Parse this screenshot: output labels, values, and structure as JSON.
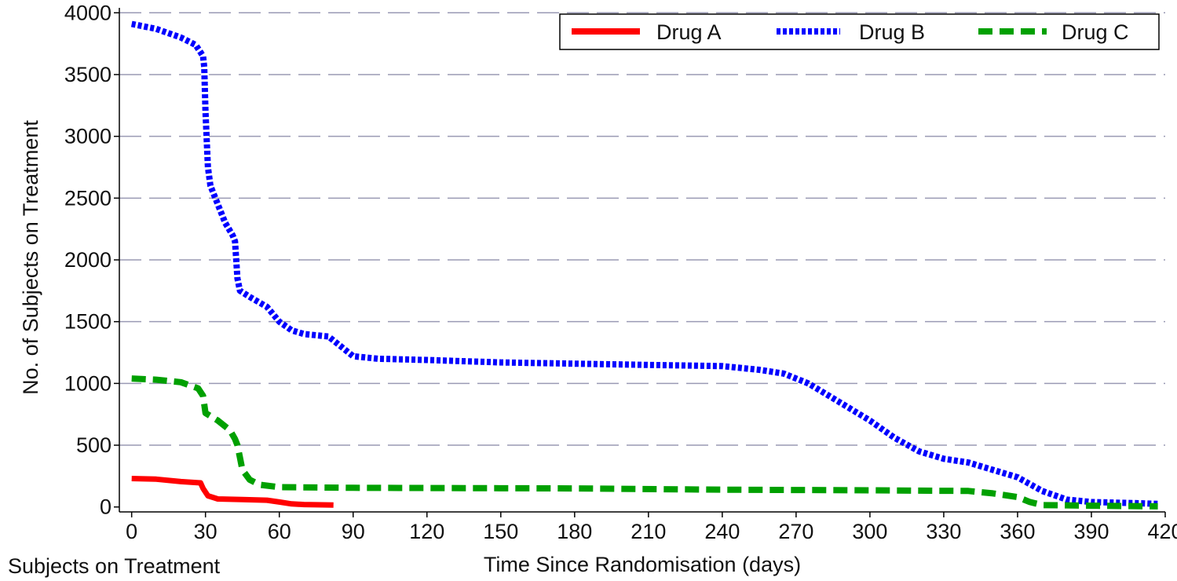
{
  "chart_data": {
    "type": "line",
    "xlabel": "Time Since Randomisation (days)",
    "ylabel": "No. of Subjects on Treatment",
    "xlim": [
      -5,
      420
    ],
    "ylim": [
      -40,
      4040
    ],
    "x_ticks": [
      0,
      30,
      60,
      90,
      120,
      150,
      180,
      210,
      240,
      270,
      300,
      330,
      360,
      390,
      420
    ],
    "y_ticks": [
      0,
      500,
      1000,
      1500,
      2000,
      2500,
      3000,
      3500,
      4000
    ],
    "grid": "horizontal dashed",
    "legend_position": "top-right",
    "series": [
      {
        "name": "Drug A",
        "color": "#ff0000",
        "style": "solid",
        "points": [
          [
            0,
            230
          ],
          [
            10,
            225
          ],
          [
            20,
            205
          ],
          [
            28,
            195
          ],
          [
            29,
            150
          ],
          [
            31,
            90
          ],
          [
            35,
            65
          ],
          [
            45,
            60
          ],
          [
            55,
            55
          ],
          [
            60,
            40
          ],
          [
            65,
            25
          ],
          [
            70,
            20
          ],
          [
            75,
            18
          ],
          [
            82,
            15
          ]
        ]
      },
      {
        "name": "Drug B",
        "color": "#0000ff",
        "style": "dotted",
        "points": [
          [
            0,
            3910
          ],
          [
            10,
            3870
          ],
          [
            20,
            3800
          ],
          [
            26,
            3740
          ],
          [
            29,
            3650
          ],
          [
            29.5,
            3560
          ],
          [
            30,
            3200
          ],
          [
            31,
            2750
          ],
          [
            32,
            2600
          ],
          [
            35,
            2450
          ],
          [
            38,
            2300
          ],
          [
            41,
            2200
          ],
          [
            42,
            2150
          ],
          [
            43,
            1850
          ],
          [
            44,
            1750
          ],
          [
            48,
            1700
          ],
          [
            55,
            1620
          ],
          [
            60,
            1500
          ],
          [
            65,
            1430
          ],
          [
            70,
            1400
          ],
          [
            80,
            1380
          ],
          [
            85,
            1300
          ],
          [
            90,
            1220
          ],
          [
            100,
            1200
          ],
          [
            120,
            1190
          ],
          [
            150,
            1170
          ],
          [
            180,
            1160
          ],
          [
            210,
            1150
          ],
          [
            240,
            1140
          ],
          [
            255,
            1110
          ],
          [
            265,
            1080
          ],
          [
            275,
            1000
          ],
          [
            290,
            820
          ],
          [
            300,
            700
          ],
          [
            310,
            560
          ],
          [
            320,
            450
          ],
          [
            330,
            390
          ],
          [
            340,
            360
          ],
          [
            350,
            300
          ],
          [
            360,
            240
          ],
          [
            370,
            130
          ],
          [
            380,
            60
          ],
          [
            390,
            40
          ],
          [
            400,
            35
          ],
          [
            410,
            30
          ],
          [
            417,
            25
          ]
        ]
      },
      {
        "name": "Drug C",
        "color": "#00a000",
        "style": "dashed",
        "points": [
          [
            0,
            1040
          ],
          [
            10,
            1030
          ],
          [
            20,
            1010
          ],
          [
            27,
            960
          ],
          [
            29,
            900
          ],
          [
            30,
            760
          ],
          [
            35,
            700
          ],
          [
            40,
            620
          ],
          [
            42,
            550
          ],
          [
            43,
            500
          ],
          [
            44,
            400
          ],
          [
            45,
            300
          ],
          [
            48,
            220
          ],
          [
            52,
            180
          ],
          [
            60,
            160
          ],
          [
            90,
            155
          ],
          [
            180,
            150
          ],
          [
            240,
            140
          ],
          [
            300,
            135
          ],
          [
            340,
            130
          ],
          [
            350,
            110
          ],
          [
            360,
            80
          ],
          [
            365,
            40
          ],
          [
            370,
            15
          ],
          [
            390,
            10
          ],
          [
            417,
            5
          ]
        ]
      }
    ]
  },
  "footnote": "Subjects on Treatment"
}
